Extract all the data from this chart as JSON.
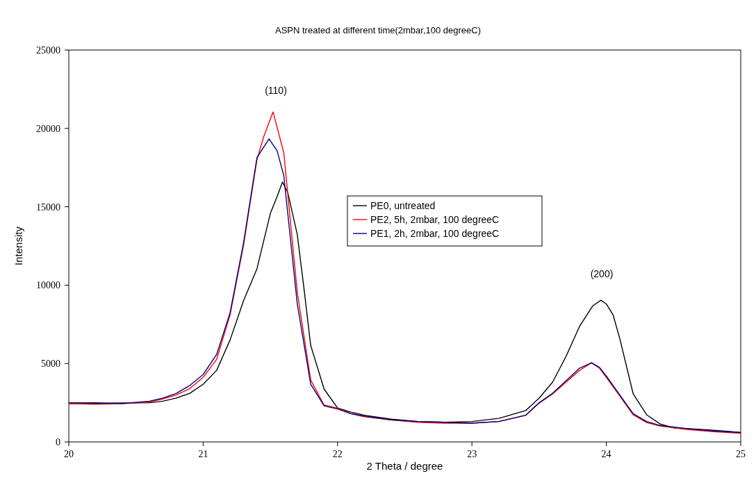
{
  "chart_data": {
    "type": "line",
    "title": "ASPN treated at different time(2mbar,100 degreeC)",
    "xlabel": "2 Theta / degree",
    "ylabel": "Intensity",
    "xlim": [
      20,
      25
    ],
    "ylim": [
      0,
      25000
    ],
    "xticks": [
      20,
      21,
      22,
      23,
      24,
      25
    ],
    "yticks": [
      0,
      5000,
      10000,
      15000,
      20000,
      25000
    ],
    "grid": false,
    "legend": "right",
    "marker": "none",
    "line_style": "solid",
    "annotations": [
      "(110)",
      "(200)"
    ],
    "series": [
      {
        "name": "PE0, untreated",
        "color": "#000000",
        "x": [
          20,
          20.2,
          20.4,
          20.6,
          20.7,
          20.8,
          20.9,
          21,
          21.1,
          21.2,
          21.3,
          21.4,
          21.5,
          21.55,
          21.59,
          21.63,
          21.7,
          21.75,
          21.8,
          21.9,
          22,
          22.1,
          22.2,
          22.4,
          22.6,
          22.8,
          23,
          23.2,
          23.4,
          23.5,
          23.6,
          23.7,
          23.8,
          23.9,
          23.96,
          24,
          24.05,
          24.1,
          24.2,
          24.3,
          24.4,
          24.5,
          24.7,
          24.9,
          25
        ],
        "values": [
          2450,
          2450,
          2480,
          2500,
          2600,
          2800,
          3100,
          3680,
          4560,
          6500,
          9000,
          11040,
          14580,
          15650,
          16580,
          15900,
          13250,
          9800,
          6160,
          3370,
          2170,
          1900,
          1700,
          1450,
          1300,
          1250,
          1300,
          1500,
          2000,
          2790,
          3810,
          5450,
          7360,
          8690,
          9040,
          8800,
          8110,
          6600,
          3060,
          1730,
          1150,
          900,
          800,
          680,
          600
        ]
      },
      {
        "name": "PE2, 5h, 2mbar, 100 degreeC",
        "color": "#ff0000",
        "x": [
          20,
          20.2,
          20.4,
          20.6,
          20.7,
          20.8,
          20.9,
          21,
          21.1,
          21.2,
          21.3,
          21.4,
          21.45,
          21.52,
          21.6,
          21.65,
          21.7,
          21.8,
          21.9,
          22,
          22.1,
          22.2,
          22.4,
          22.6,
          22.8,
          23,
          23.2,
          23.4,
          23.5,
          23.6,
          23.7,
          23.8,
          23.89,
          23.95,
          24,
          24.1,
          24.2,
          24.3,
          24.4,
          24.6,
          24.8,
          25
        ],
        "values": [
          2450,
          2400,
          2450,
          2550,
          2750,
          3000,
          3400,
          4120,
          5270,
          8100,
          12540,
          18000,
          19460,
          21050,
          18440,
          14000,
          9570,
          3950,
          2350,
          2150,
          1800,
          1600,
          1400,
          1250,
          1200,
          1200,
          1300,
          1700,
          2480,
          3060,
          3810,
          4560,
          5050,
          4700,
          4120,
          2930,
          1730,
          1240,
          1020,
          800,
          650,
          550
        ]
      },
      {
        "name": "PE1, 2h, 2mbar, 100 degreeC",
        "color": "#000080",
        "x": [
          20,
          20.2,
          20.4,
          20.6,
          20.7,
          20.8,
          20.9,
          21,
          21.1,
          21.2,
          21.3,
          21.4,
          21.49,
          21.55,
          21.6,
          21.7,
          21.8,
          21.9,
          22,
          22.1,
          22.2,
          22.4,
          22.6,
          22.8,
          23,
          23.2,
          23.4,
          23.5,
          23.6,
          23.7,
          23.8,
          23.89,
          23.95,
          24,
          24.1,
          24.2,
          24.3,
          24.4,
          24.6,
          24.8,
          25
        ],
        "values": [
          2500,
          2500,
          2450,
          2600,
          2800,
          3100,
          3600,
          4300,
          5580,
          8240,
          12680,
          18130,
          19330,
          18580,
          16980,
          8820,
          3680,
          2300,
          2100,
          1800,
          1650,
          1400,
          1300,
          1250,
          1200,
          1300,
          1700,
          2500,
          3100,
          3900,
          4700,
          5050,
          4750,
          4200,
          3000,
          1800,
          1300,
          1050,
          850,
          700,
          600
        ]
      }
    ]
  }
}
